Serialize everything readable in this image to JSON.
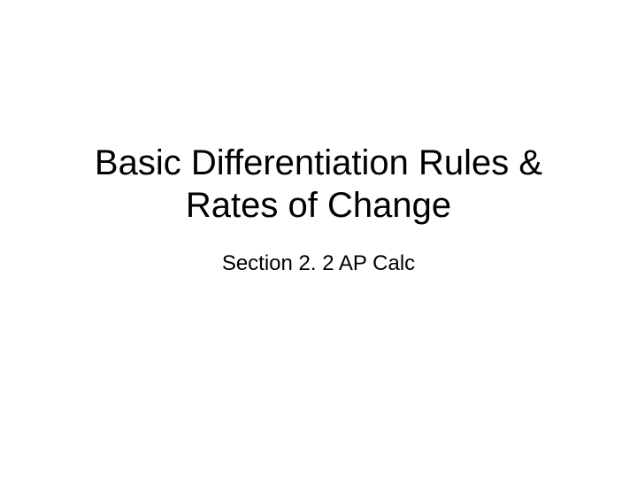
{
  "slide": {
    "title_line1": "Basic Differentiation Rules &",
    "title_line2": "Rates of Change",
    "subtitle": "Section 2. 2 AP Calc",
    "background_color": "#ffffff",
    "text_color": "#000000",
    "title_fontsize": 40,
    "subtitle_fontsize": 24,
    "font_family": "Arial"
  }
}
